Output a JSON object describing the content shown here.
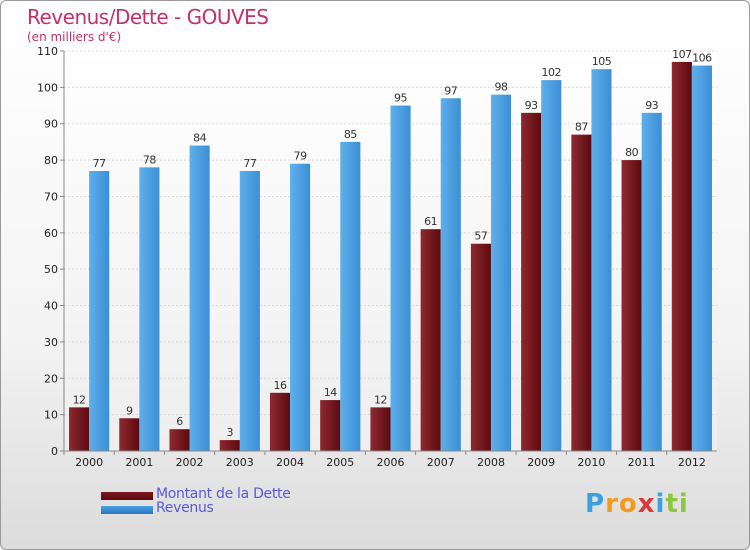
{
  "header": {
    "title": "Revenus/Dette - GOUVES",
    "subtitle": "(en milliers d'€)"
  },
  "legend": {
    "debt_label": "Montant de la Dette",
    "revenue_label": "Revenus"
  },
  "logo": {
    "letters": [
      "P",
      "r",
      "o",
      "x",
      "i",
      "t",
      "i"
    ],
    "colors": [
      "#3aa0e0",
      "#f39a1d",
      "#f39a1d",
      "#d83a3a",
      "#3aa0e0",
      "#8cc63f",
      "#8cc63f"
    ]
  },
  "colors": {
    "debt": "#7a1a1f",
    "debt_dark": "#5a0a0f",
    "revenue": "#4aa0e0",
    "revenue_dark": "#2a78c0",
    "text": "#c4306a",
    "axis_text": "#222222",
    "grid": "#d8d8d8"
  },
  "chart_data": {
    "type": "bar",
    "categories": [
      "2000",
      "2001",
      "2002",
      "2003",
      "2004",
      "2005",
      "2006",
      "2007",
      "2008",
      "2009",
      "2010",
      "2011",
      "2012"
    ],
    "series": [
      {
        "name": "Montant de la Dette",
        "values": [
          12,
          9,
          6,
          3,
          16,
          14,
          12,
          61,
          57,
          93,
          87,
          80,
          107
        ]
      },
      {
        "name": "Revenus",
        "values": [
          77,
          78,
          84,
          77,
          79,
          85,
          95,
          97,
          98,
          102,
          105,
          93,
          106
        ]
      }
    ],
    "title": "Revenus/Dette - GOUVES",
    "subtitle": "(en milliers d'€)",
    "ylim": [
      0,
      110
    ],
    "yticks": [
      0,
      10,
      20,
      30,
      40,
      50,
      60,
      70,
      80,
      90,
      100,
      110
    ],
    "grid": true,
    "legend_position": "bottom-left"
  }
}
